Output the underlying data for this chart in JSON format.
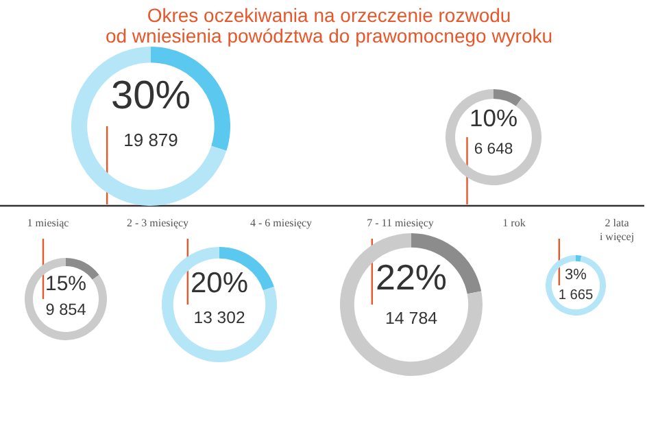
{
  "chart_data": {
    "type": "other",
    "title": [
      "Okres oczekiwania na orzeczenie rozwodu",
      "od wniesienia powództwa do prawomocnego wyroku"
    ],
    "categories": [
      "1 miesiąc",
      "2 - 3 miesięcy",
      "4 - 6 miesięcy",
      "7 - 11 miesięcy",
      "1 rok",
      "2 lata\ni więcej"
    ],
    "series": [
      {
        "values": [
          15,
          30,
          20,
          22,
          10,
          3
        ],
        "value_labels": [
          "15%",
          "30%",
          "20%",
          "22%",
          "10%",
          "3%"
        ],
        "colors": [
          "#8c8c8c",
          "#5bc8f0",
          "#5bc8f0",
          "#8c8c8c",
          "#8c8c8c",
          "#5bc8f0"
        ]
      },
      {
        "values": [
          9854,
          19879,
          13302,
          14784,
          6648,
          1665
        ],
        "value_labels": [
          "9 854",
          "19 879",
          "13 302",
          "14 784",
          "6 648",
          "1 665"
        ]
      }
    ]
  }
}
